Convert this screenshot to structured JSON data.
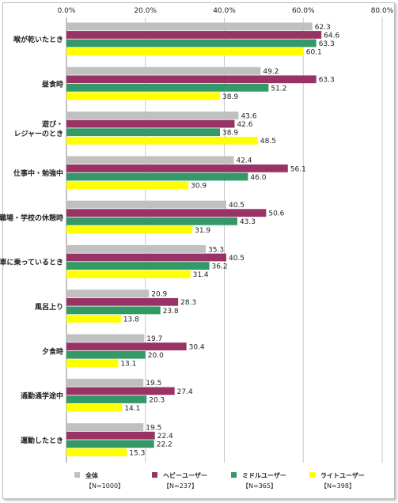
{
  "chart_data": {
    "type": "bar",
    "orientation": "horizontal",
    "xlim": [
      0,
      80
    ],
    "x_ticks": [
      "0.0%",
      "20.0%",
      "40.0%",
      "60.0%",
      "80.0%"
    ],
    "categories": [
      "喉が乾いたとき",
      "昼食時",
      "遊び・\nレジャーのとき",
      "仕事中・勉強中",
      "職場・学校の休憩時",
      "車に乗っているとき",
      "風呂上り",
      "夕食時",
      "通勤通学途中",
      "運動したとき"
    ],
    "series": [
      {
        "name": "全体",
        "note": "【N=1000】",
        "color": "#c0c0c0",
        "values": [
          62.3,
          49.2,
          43.6,
          42.4,
          40.5,
          35.3,
          20.9,
          19.7,
          19.5,
          19.5
        ]
      },
      {
        "name": "ヘビーユーザー",
        "note": "【N=237】",
        "color": "#993366",
        "values": [
          64.6,
          63.3,
          42.6,
          56.1,
          50.6,
          40.5,
          28.3,
          30.4,
          27.4,
          22.4
        ]
      },
      {
        "name": "ミドルユーザー",
        "note": "【N=365】",
        "color": "#339966",
        "values": [
          63.3,
          51.2,
          38.9,
          46.0,
          43.3,
          36.2,
          23.8,
          20.0,
          20.3,
          22.2
        ]
      },
      {
        "name": "ライトユーザー",
        "note": "【N=398】",
        "color": "#ffff00",
        "values": [
          60.1,
          38.9,
          48.5,
          30.9,
          31.9,
          31.4,
          13.8,
          13.1,
          14.1,
          15.3
        ]
      }
    ],
    "legend_position": "bottom",
    "grid": true
  }
}
